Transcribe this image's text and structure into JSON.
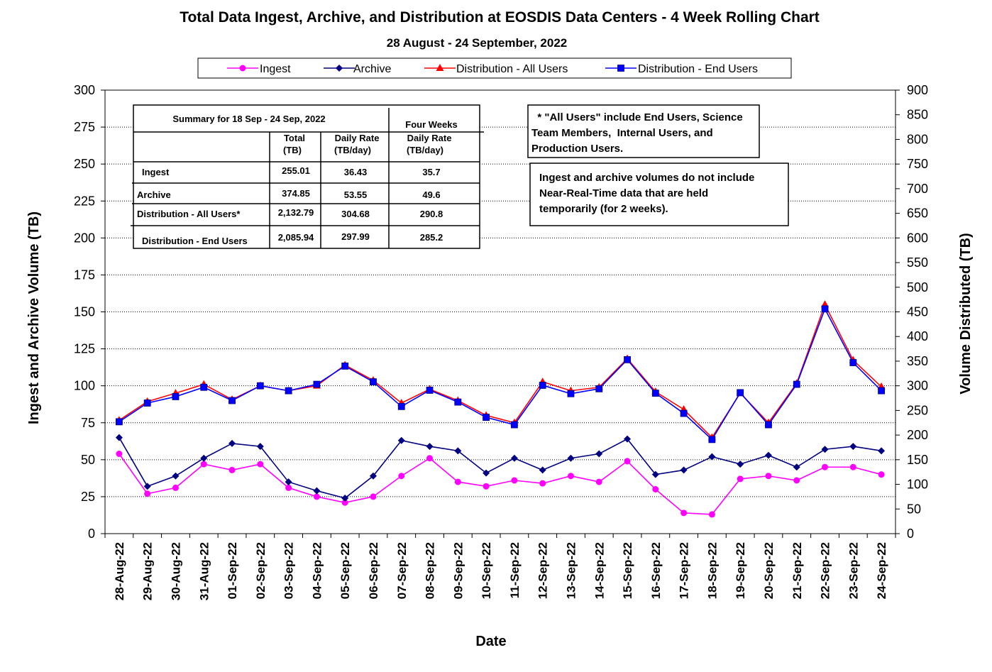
{
  "chart_data": {
    "type": "line",
    "title": "Total Data Ingest, Archive, and  Distribution at EOSDIS Data Centers - 4 Week Rolling Chart",
    "subtitle": "28  August   -  24  September,  2022",
    "xlabel": "Date",
    "ylabel": "Ingest and Archive Volume (TB)",
    "y2label": "Volume Distributed (TB)",
    "ylim": [
      0,
      300
    ],
    "y2lim": [
      0,
      900
    ],
    "yticks": [
      "0",
      "25",
      "50",
      "75",
      "100",
      "125",
      "150",
      "175",
      "200",
      "225",
      "250",
      "275",
      "300"
    ],
    "y2ticks": [
      "0",
      "50",
      "100",
      "150",
      "200",
      "250",
      "300",
      "350",
      "400",
      "450",
      "500",
      "550",
      "600",
      "650",
      "700",
      "750",
      "800",
      "850",
      "900"
    ],
    "grid": true,
    "legend_position": "top",
    "categories": [
      "28-Aug-22",
      "29-Aug-22",
      "30-Aug-22",
      "31-Aug-22",
      "01-Sep-22",
      "02-Sep-22",
      "03-Sep-22",
      "04-Sep-22",
      "05-Sep-22",
      "06-Sep-22",
      "07-Sep-22",
      "08-Sep-22",
      "09-Sep-22",
      "10-Sep-22",
      "11-Sep-22",
      "12-Sep-22",
      "13-Sep-22",
      "14-Sep-22",
      "15-Sep-22",
      "16-Sep-22",
      "17-Sep-22",
      "18-Sep-22",
      "19-Sep-22",
      "20-Sep-22",
      "21-Sep-22",
      "22-Sep-22",
      "23-Sep-22",
      "24-Sep-22"
    ],
    "series": [
      {
        "name": "Ingest",
        "axis": "left",
        "color": "#ff00ff",
        "marker": "circle",
        "values": [
          54,
          27,
          31,
          47,
          43,
          47,
          31,
          25,
          21,
          25,
          39,
          51,
          35,
          32,
          36,
          34,
          39,
          35,
          49,
          30,
          14,
          13,
          37,
          39,
          36,
          45,
          45,
          40
        ]
      },
      {
        "name": "Archive",
        "axis": "left",
        "color": "#000080",
        "marker": "diamond",
        "values": [
          65,
          32,
          39,
          51,
          61,
          59,
          35,
          29,
          24,
          39,
          63,
          59,
          56,
          41,
          51,
          43,
          51,
          54,
          64,
          40,
          43,
          52,
          47,
          53,
          45,
          57,
          59,
          56
        ]
      },
      {
        "name": "Distribution - All Users",
        "axis": "right",
        "color": "#ff0000",
        "marker": "triangle",
        "values": [
          230,
          268,
          285,
          303,
          272,
          300,
          290,
          300,
          342,
          311,
          265,
          293,
          270,
          240,
          225,
          308,
          290,
          297,
          355,
          288,
          252,
          195,
          285,
          225,
          305,
          465,
          352,
          298
        ]
      },
      {
        "name": "Distribution - End Users",
        "axis": "right",
        "color": "#0000ff",
        "marker": "square",
        "values": [
          227,
          265,
          278,
          297,
          270,
          300,
          290,
          303,
          340,
          308,
          258,
          291,
          267,
          236,
          221,
          301,
          284,
          294,
          353,
          285,
          244,
          191,
          286,
          221,
          303,
          456,
          347,
          290
        ]
      }
    ]
  },
  "summary_table": {
    "heading": "Summary  for  18  Sep   -  24  Sep,  2022",
    "four_weeks": "Four Weeks",
    "col_total": [
      "Total",
      "(TB)"
    ],
    "col_daily": [
      "Daily Rate",
      "(TB/day)"
    ],
    "col_four": [
      "Daily Rate",
      "(TB/day)"
    ],
    "rows": [
      {
        "label": "Ingest",
        "total": "255.01",
        "daily": "36.43",
        "four": "35.7"
      },
      {
        "label": "Archive",
        "total": "374.85",
        "daily": "53.55",
        "four": "49.6"
      },
      {
        "label": "Distribution - All Users*",
        "total": "2,132.79",
        "daily": "304.68",
        "four": "290.8"
      },
      {
        "label": "Distribution - End Users",
        "total": "2,085.94",
        "daily": "297.99",
        "four": "285.2"
      }
    ]
  },
  "notes": {
    "note1": [
      "  * \"All Users\" include End Users, Science",
      "Team Members,  Internal Users, and",
      "Production Users."
    ],
    "note2": [
      "Ingest and archive volumes do not include",
      "Near-Real-Time data that are held",
      "temporarily (for 2 weeks)."
    ]
  }
}
